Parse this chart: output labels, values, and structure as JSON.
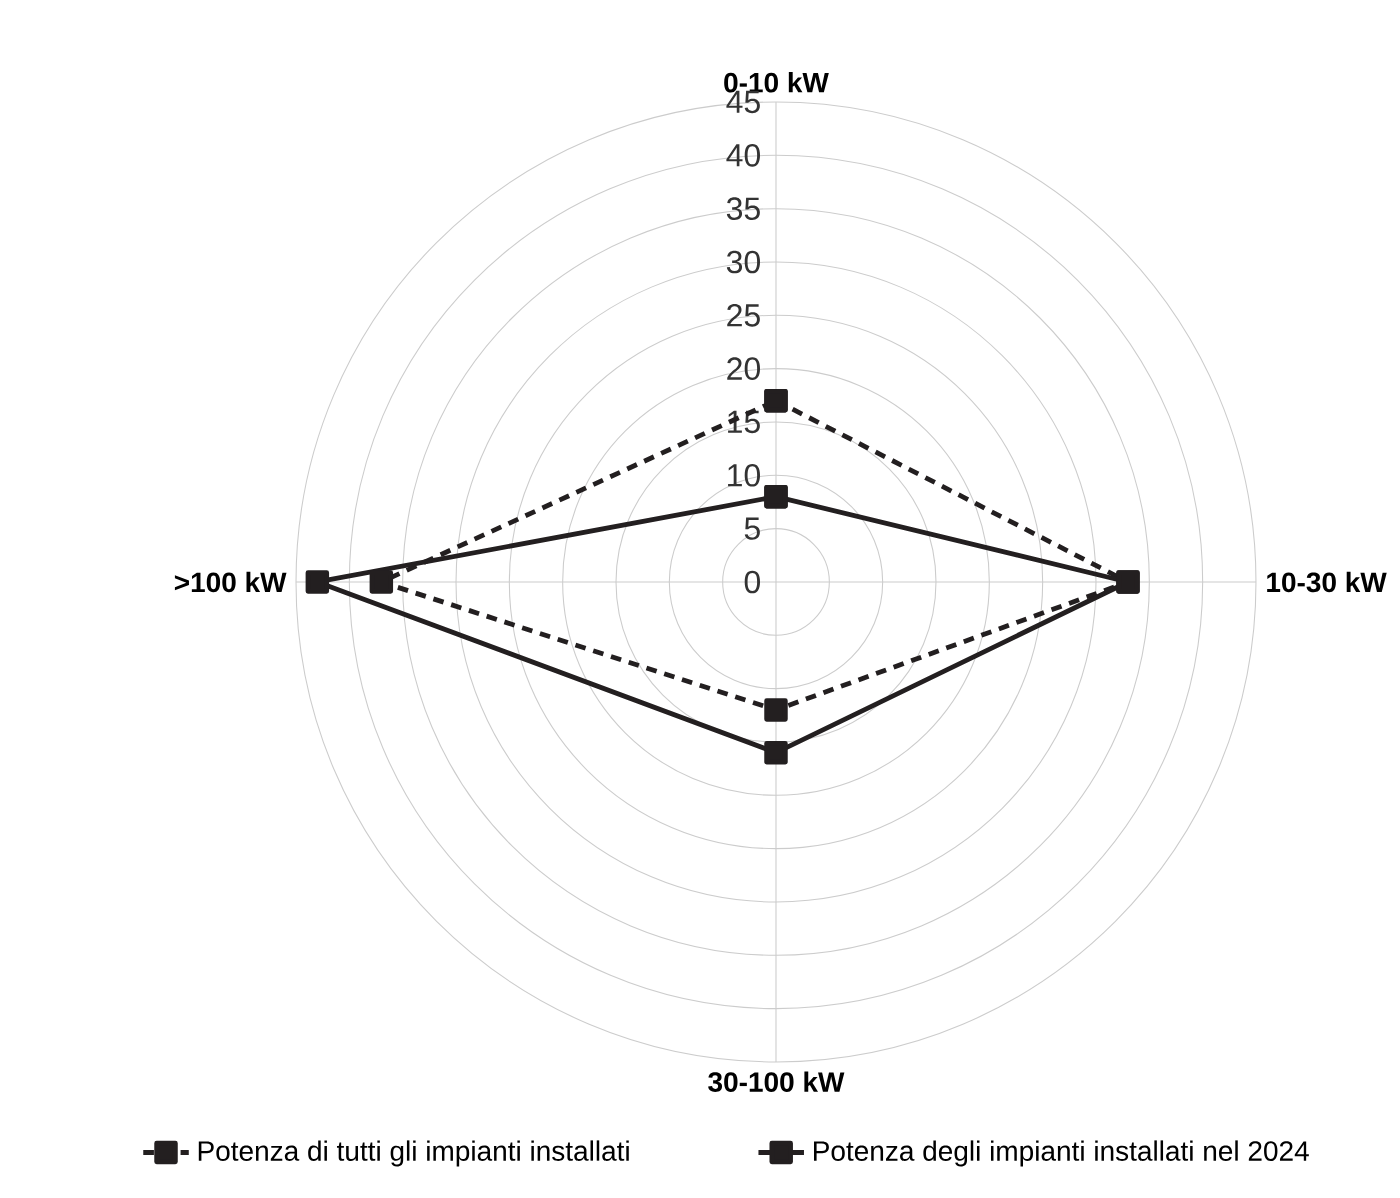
{
  "chart_data": {
    "type": "radar",
    "categories": [
      "0-10 kW",
      "10-30 kW",
      "30-100 kW",
      ">100 kW"
    ],
    "series": [
      {
        "name": "Potenza di tutti gli impianti installati",
        "color": "#231f20",
        "values": [
          17,
          33,
          12,
          37
        ],
        "line_style": "dashed"
      },
      {
        "name": "Potenza degli impianti installati nel 2024",
        "color": "#231f20",
        "values": [
          8,
          33,
          16,
          43
        ],
        "line_style": "solid"
      }
    ],
    "ylim": [
      0,
      45
    ],
    "yticks": [
      0,
      5,
      10,
      15,
      20,
      25,
      30,
      35,
      40,
      45
    ],
    "grid": true,
    "marker": "square",
    "legend": "bottom"
  }
}
